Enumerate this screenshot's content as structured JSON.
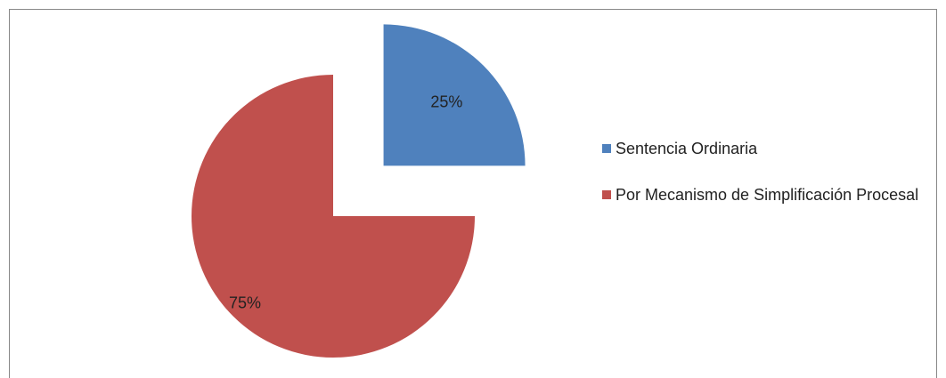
{
  "chart_data": {
    "type": "pie",
    "categories": [
      "Sentencia Ordinaria",
      "Por Mecanismo de Simplificación Procesal"
    ],
    "values": [
      25,
      75
    ],
    "value_labels": [
      "25%",
      "75%"
    ],
    "colors": [
      "#4f81bd",
      "#c0504d"
    ],
    "legend": "right"
  }
}
